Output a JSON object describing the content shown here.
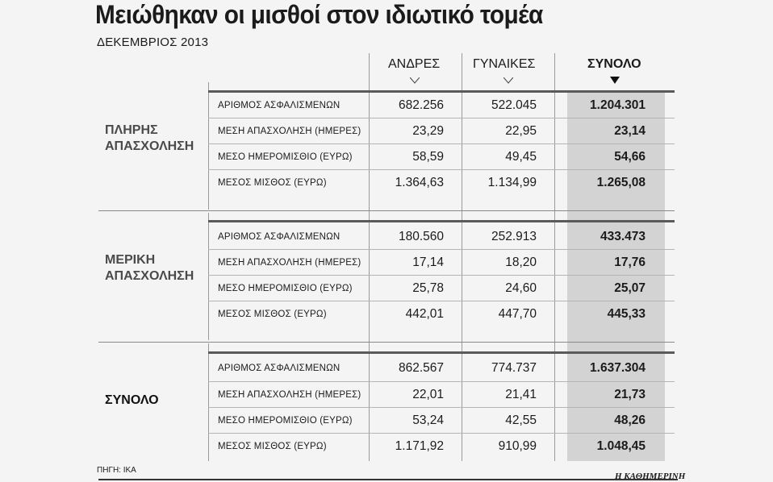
{
  "title": "Μειώθηκαν οι μισθοί στον ιδιωτικό τομέα",
  "subtitle": "ΔΕΚΕΜΒΡΙΟΣ 2013",
  "columns": {
    "men": "ΑΝΔΡΕΣ",
    "women": "ΓΥΝΑΙΚΕΣ",
    "total": "ΣΥΝΟΛΟ"
  },
  "groups": [
    {
      "label_line1": "ΠΛΗΡΗΣ",
      "label_line2": "ΑΠΑΣΧΟΛΗΣΗ",
      "rows": [
        {
          "label": "ΑΡΙΘΜΟΣ ΑΣΦΑΛΙΣΜΕΝΩΝ",
          "men": "682.256",
          "women": "522.045",
          "total": "1.204.301"
        },
        {
          "label": "ΜΕΣΗ ΑΠΑΣΧΟΛΗΣΗ (ΗΜΕΡΕΣ)",
          "men": "23,29",
          "women": "22,95",
          "total": "23,14"
        },
        {
          "label": "ΜΕΣΟ ΗΜΕΡΟΜΙΣΘΙΟ (ΕΥΡΩ)",
          "men": "58,59",
          "women": "49,45",
          "total": "54,66"
        },
        {
          "label": "ΜΕΣΟΣ ΜΙΣΘΟΣ (ΕΥΡΩ)",
          "men": "1.364,63",
          "women": "1.134,99",
          "total": "1.265,08"
        }
      ]
    },
    {
      "label_line1": "ΜΕΡΙΚΗ",
      "label_line2": "ΑΠΑΣΧΟΛΗΣΗ",
      "rows": [
        {
          "label": "ΑΡΙΘΜΟΣ ΑΣΦΑΛΙΣΜΕΝΩΝ",
          "men": "180.560",
          "women": "252.913",
          "total": "433.473"
        },
        {
          "label": "ΜΕΣΗ ΑΠΑΣΧΟΛΗΣΗ (ΗΜΕΡΕΣ)",
          "men": "17,14",
          "women": "18,20",
          "total": "17,76"
        },
        {
          "label": "ΜΕΣΟ ΗΜΕΡΟΜΙΣΘΙΟ (ΕΥΡΩ)",
          "men": "25,78",
          "women": "24,60",
          "total": "25,07"
        },
        {
          "label": "ΜΕΣΟΣ ΜΙΣΘΟΣ (ΕΥΡΩ)",
          "men": "442,01",
          "women": "447,70",
          "total": "445,33"
        }
      ]
    },
    {
      "label_line1": "ΣΥΝΟΛΟ",
      "label_line2": "",
      "rows": [
        {
          "label": "ΑΡΙΘΜΟΣ ΑΣΦΑΛΙΣΜΕΝΩΝ",
          "men": "862.567",
          "women": "774.737",
          "total": "1.637.304"
        },
        {
          "label": "ΜΕΣΗ ΑΠΑΣΧΟΛΗΣΗ (ΗΜΕΡΕΣ)",
          "men": "22,01",
          "women": "21,41",
          "total": "21,73"
        },
        {
          "label": "ΜΕΣΟ ΗΜΕΡΟΜΙΣΘΙΟ (ΕΥΡΩ)",
          "men": "53,24",
          "women": "42,55",
          "total": "48,26"
        },
        {
          "label": "ΜΕΣΟΣ ΜΙΣΘΟΣ (ΕΥΡΩ)",
          "men": "1.171,92",
          "women": "910,99",
          "total": "1.048,45"
        }
      ]
    }
  ],
  "source": "ΠΗΓΗ: ΙΚΑ",
  "publisher": "Η ΚΑΘΗΜΕΡΙΝΗ"
}
